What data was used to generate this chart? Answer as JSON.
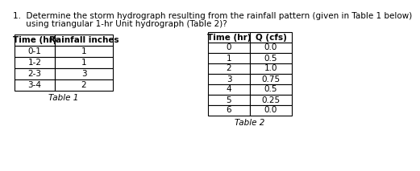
{
  "question_line1": "1.  Determine the storm hydrograph resulting from the rainfall pattern (given in Table 1 below)",
  "question_line2": "     using triangular 1-hr Unit hydrograph (Table 2)?",
  "table1_headers": [
    "Time (hr)",
    "Rainfall inches"
  ],
  "table1_rows": [
    [
      "0-1",
      "1"
    ],
    [
      "1-2",
      "1"
    ],
    [
      "2-3",
      "3"
    ],
    [
      "3-4",
      "2"
    ]
  ],
  "table1_caption": "Table 1",
  "table2_headers": [
    "Time (hr)",
    "Q (cfs)"
  ],
  "table2_rows": [
    [
      "0",
      "0.0"
    ],
    [
      "1",
      "0.5"
    ],
    [
      "2",
      "1.0"
    ],
    [
      "3",
      "0.75"
    ],
    [
      "4",
      "0.5"
    ],
    [
      "5",
      "0.25"
    ],
    [
      "6",
      "0.0"
    ]
  ],
  "table2_caption": "Table 2",
  "bg_color": "#ffffff",
  "text_color": "#000000",
  "font_size": 7.5,
  "header_font_size": 7.5
}
